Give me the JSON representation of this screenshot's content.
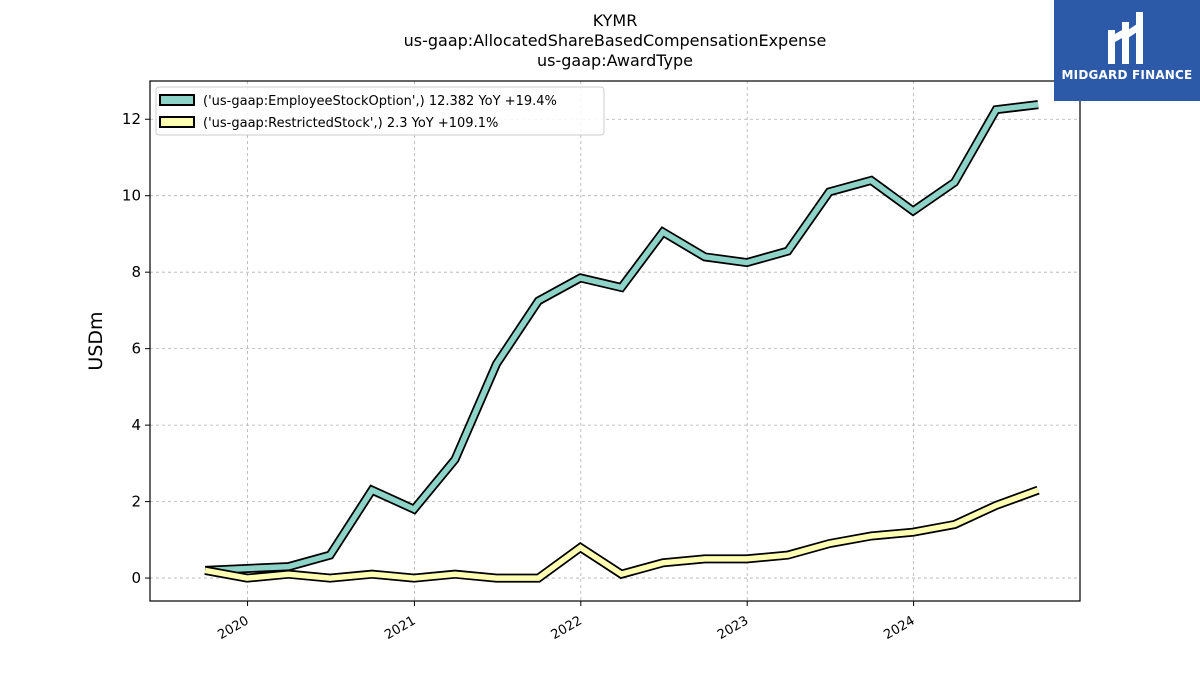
{
  "brand": {
    "name": "MIDGARD FINANCE",
    "color": "#2c5aa8"
  },
  "chart_data": {
    "type": "line",
    "title": [
      "KYMR",
      "us-gaap:AllocatedShareBasedCompensationExpense",
      "us-gaap:AwardType"
    ],
    "xlabel": "",
    "ylabel": "USDm",
    "x": [
      "2019-09-30",
      "2019-12-31",
      "2020-03-31",
      "2020-06-30",
      "2020-09-30",
      "2020-12-31",
      "2021-03-31",
      "2021-06-30",
      "2021-09-30",
      "2021-12-31",
      "2022-03-31",
      "2022-06-30",
      "2022-09-30",
      "2022-12-31",
      "2023-03-31",
      "2023-06-30",
      "2023-09-30",
      "2023-12-31",
      "2024-03-31",
      "2024-06-30",
      "2024-09-30"
    ],
    "series": [
      {
        "name": "('us-gaap:EmployeeStockOption',) 12.382 YoY +19.4%",
        "color": "#8dd3c7",
        "values": [
          0.2,
          0.25,
          0.3,
          0.6,
          2.3,
          1.8,
          3.1,
          5.6,
          7.25,
          7.85,
          7.6,
          9.05,
          8.4,
          8.25,
          8.55,
          10.1,
          10.4,
          9.6,
          10.35,
          12.25,
          12.382
        ]
      },
      {
        "name": "('us-gaap:RestrictedStock',) 2.3 YoY +109.1%",
        "color": "#ffffb3",
        "values": [
          0.2,
          0.0,
          0.1,
          0.0,
          0.1,
          0.0,
          0.1,
          0.0,
          0.0,
          0.8,
          0.1,
          0.4,
          0.5,
          0.5,
          0.6,
          0.9,
          1.1,
          1.2,
          1.4,
          1.9,
          2.3
        ]
      }
    ],
    "xticks": [
      "2020",
      "2021",
      "2022",
      "2023",
      "2024"
    ],
    "yticks": [
      0,
      2,
      4,
      6,
      8,
      10,
      12
    ],
    "ylim": [
      -0.6,
      13.0
    ],
    "xlim": [
      "2019-06-01",
      "2024-12-31"
    ],
    "grid": true,
    "legend": "top-left"
  }
}
